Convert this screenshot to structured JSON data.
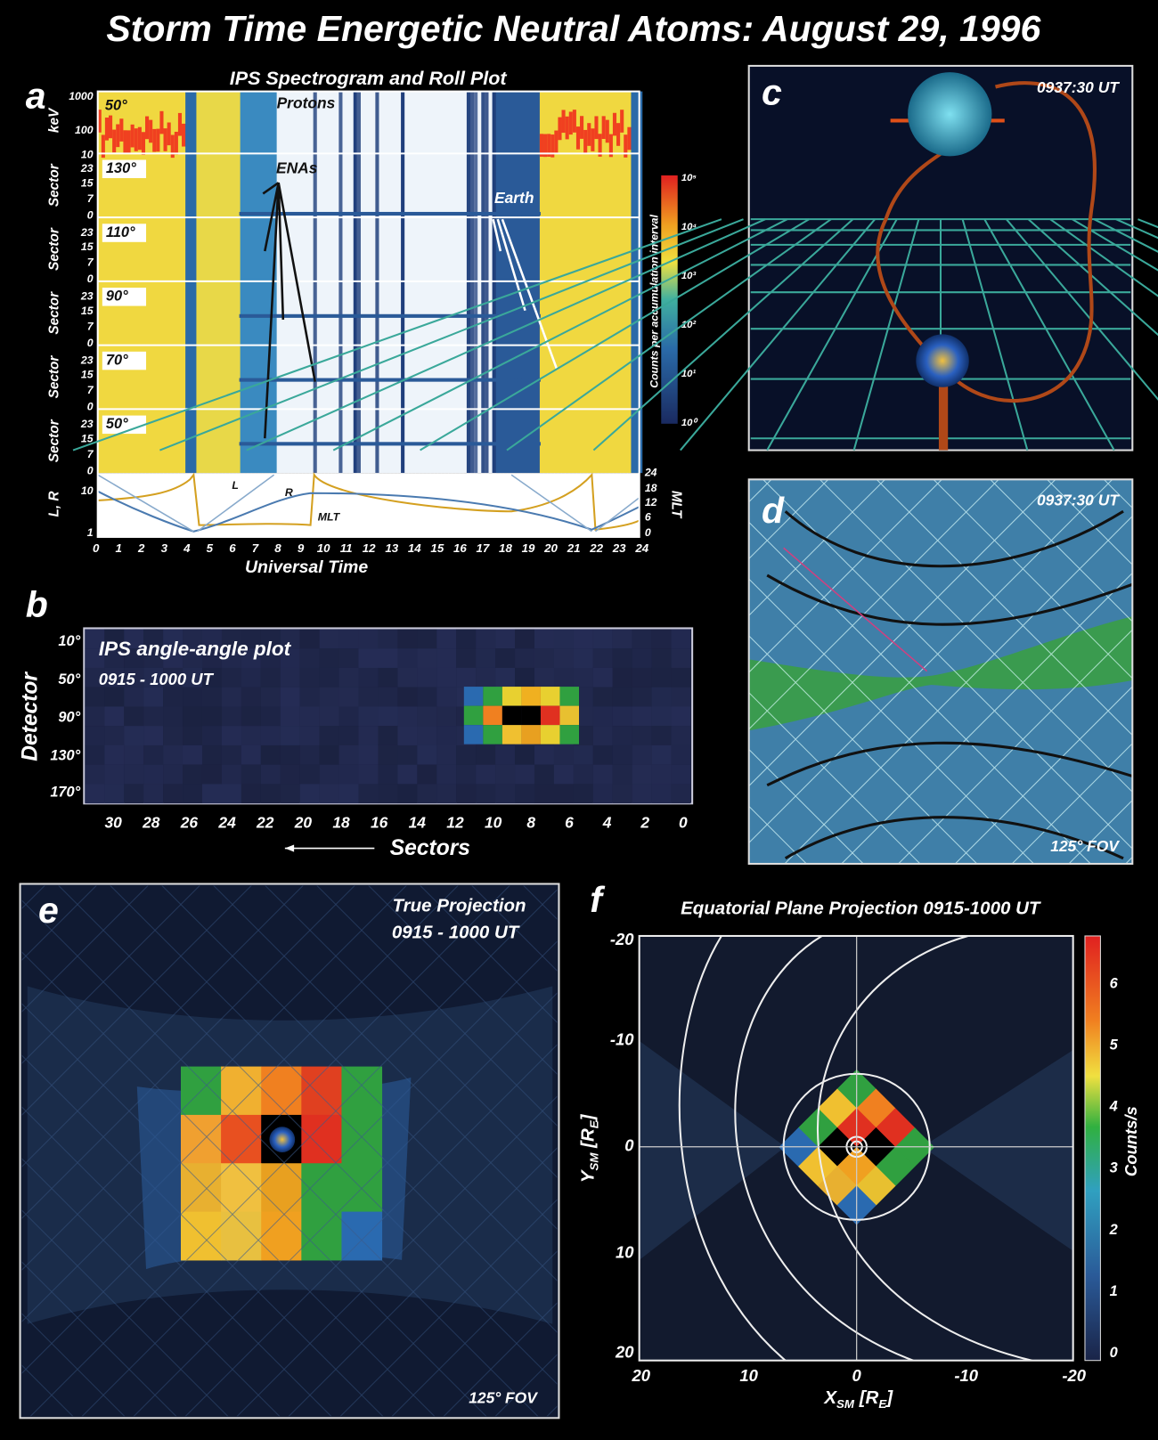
{
  "title": "Storm Time Energetic Neutral Atoms:   August 29, 1996",
  "panel_a": {
    "label": "a",
    "title": "IPS Spectrogram and Roll Plot",
    "kev_label": "keV",
    "kev_ticks": [
      "1000",
      "100",
      "10"
    ],
    "sector_label": "Sector",
    "sector_ticks": [
      "23",
      "15",
      "7",
      "0"
    ],
    "angles": [
      "50°",
      "130°",
      "110°",
      "90°",
      "70°",
      "50°"
    ],
    "lr_label": "L, R",
    "lr_ticks": [
      "10",
      "1"
    ],
    "mlt_label": "MLT",
    "mlt_ticks": [
      "24",
      "18",
      "12",
      "6",
      "0"
    ],
    "x_ticks": [
      "0",
      "1",
      "2",
      "3",
      "4",
      "5",
      "6",
      "7",
      "8",
      "9",
      "10",
      "11",
      "12",
      "13",
      "14",
      "15",
      "16",
      "17",
      "18",
      "19",
      "20",
      "21",
      "22",
      "23",
      "24"
    ],
    "x_label": "Universal Time",
    "annotations": {
      "protons": "Protons",
      "enas": "ENAs",
      "earth": "Earth",
      "l": "L",
      "r": "R",
      "mlt": "MLT"
    },
    "colorbar_label": "Counts per accumulation interval",
    "colorbar_ticks": [
      "10⁵",
      "10⁴",
      "10³",
      "10²",
      "10¹",
      "10⁰"
    ]
  },
  "panel_b": {
    "label": "b",
    "title": "IPS angle-angle plot",
    "time": "0915 - 1000 UT",
    "y_label": "Detector",
    "y_ticks": [
      "10°",
      "50°",
      "90°",
      "130°",
      "170°"
    ],
    "x_ticks": [
      "30",
      "28",
      "26",
      "24",
      "22",
      "20",
      "18",
      "16",
      "14",
      "12",
      "10",
      "8",
      "6",
      "4",
      "2",
      "0"
    ],
    "x_label": "Sectors"
  },
  "panel_c": {
    "label": "c",
    "time": "0937:30 UT"
  },
  "panel_d": {
    "label": "d",
    "time": "0937:30 UT",
    "fov": "125° FOV"
  },
  "panel_e": {
    "label": "e",
    "title": "True Projection",
    "time": "0915 - 1000 UT",
    "fov": "125° FOV"
  },
  "panel_f": {
    "label": "f",
    "title": "Equatorial Plane Projection  0915-1000 UT",
    "y_ticks": [
      "-20",
      "-10",
      "0",
      "10",
      "20"
    ],
    "x_ticks": [
      "20",
      "10",
      "0",
      "-10",
      "-20"
    ],
    "y_label": [
      "Y",
      "SM",
      " [R",
      "E",
      "]"
    ],
    "x_label": [
      "X",
      "SM",
      " [R",
      "E",
      "]"
    ],
    "colorbar_ticks": [
      "6",
      "5",
      "4",
      "3",
      "2",
      "1",
      "0"
    ],
    "colorbar_label": "Counts/s"
  }
}
